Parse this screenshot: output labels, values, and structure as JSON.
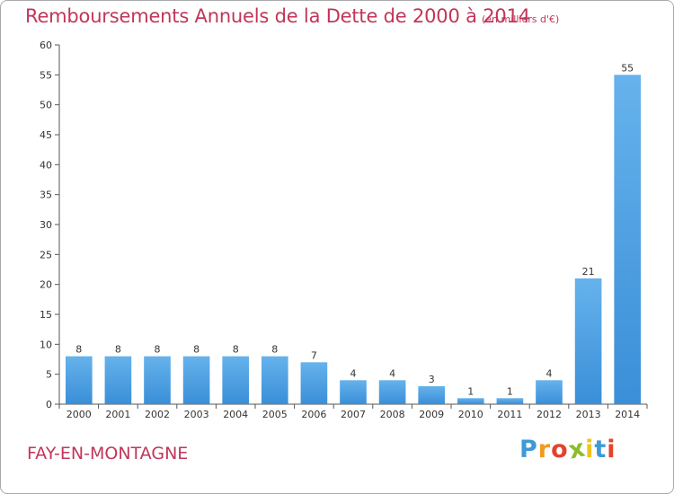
{
  "chart_data": {
    "type": "bar",
    "title": "Remboursements Annuels de la Dette de 2000 à 2014",
    "subtitle": "(en milliers d'€)",
    "xlabel": "",
    "ylabel": "",
    "categories": [
      "2000",
      "2001",
      "2002",
      "2003",
      "2004",
      "2005",
      "2006",
      "2007",
      "2008",
      "2009",
      "2010",
      "2011",
      "2012",
      "2013",
      "2014"
    ],
    "values": [
      8,
      8,
      8,
      8,
      8,
      8,
      7,
      4,
      4,
      3,
      1,
      1,
      4,
      21,
      55
    ],
    "ylim": [
      0,
      60
    ],
    "yticks": [
      0,
      5,
      10,
      15,
      20,
      25,
      30,
      35,
      40,
      45,
      50,
      55,
      60
    ],
    "grid": false,
    "legend": "none",
    "bar_color": "#3a8fd8",
    "bar_color_light": "#66b2ec",
    "axis_color": "#555555"
  },
  "commune": "FAY-EN-MONTAGNE",
  "brand": {
    "letters": [
      "P",
      "r",
      "o",
      "x",
      "i",
      "t",
      "i"
    ],
    "colors": [
      "#3e9ad6",
      "#f29a1e",
      "#e4422d",
      "#8bbd2a",
      "#f3c21a",
      "#3e9ad6",
      "#e4422d"
    ]
  },
  "title_color": "#c0365a"
}
